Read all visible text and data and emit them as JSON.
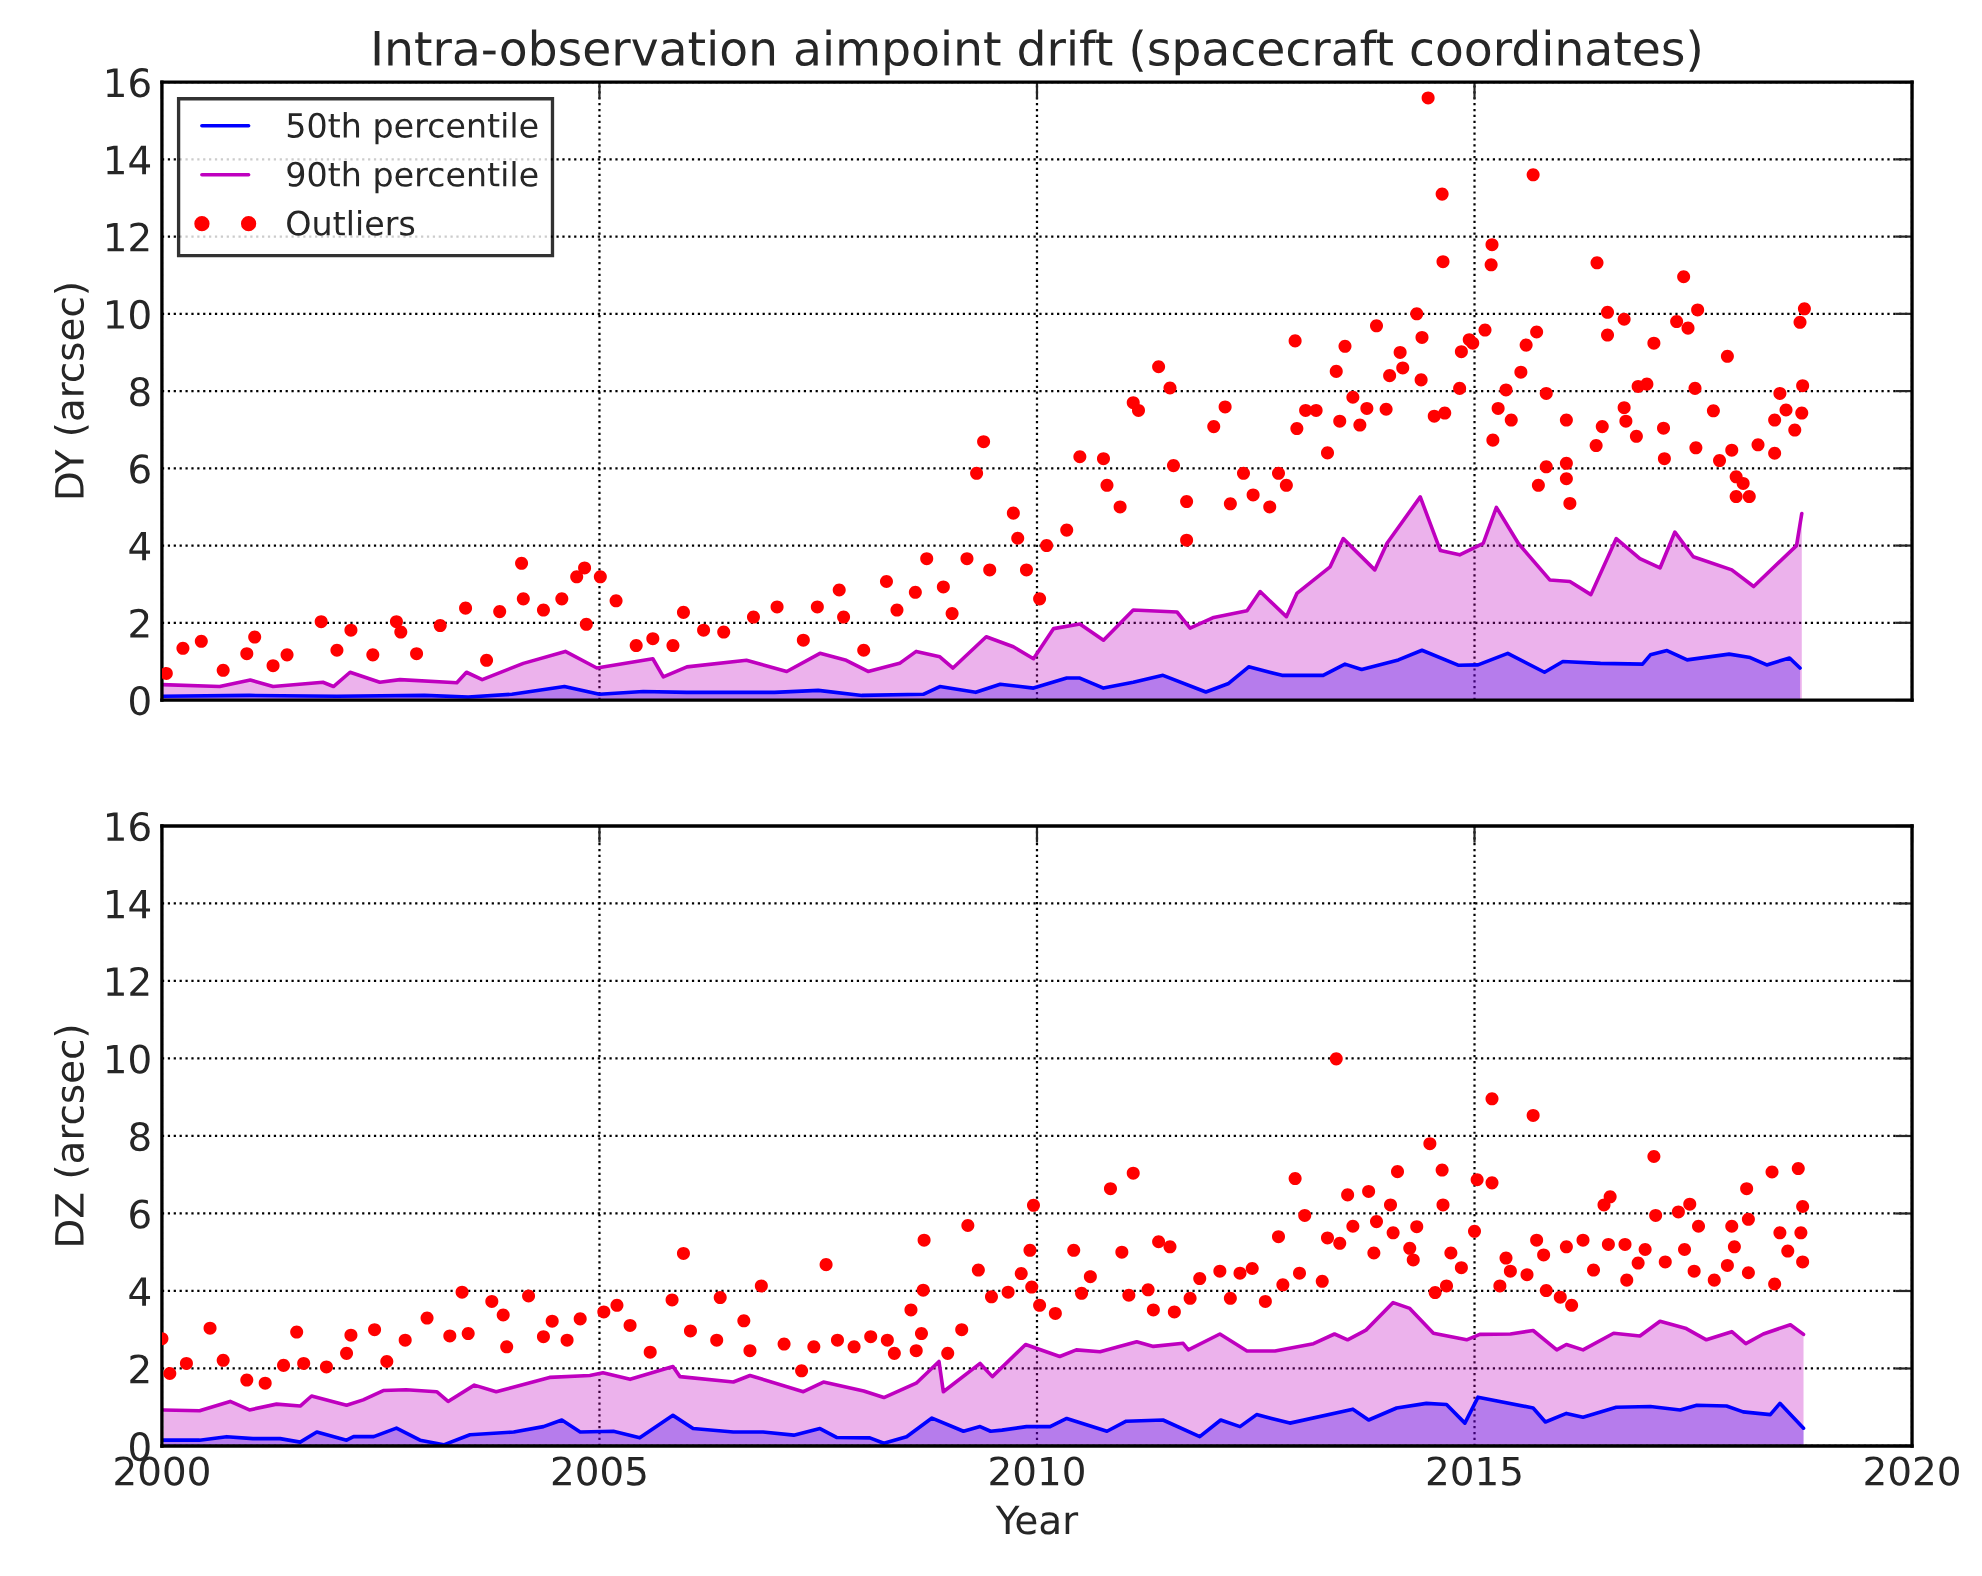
{
  "chart_data": [
    {
      "type": "area",
      "title": "Intra-observation aimpoint drift (spacecraft coordinates)",
      "ylabel": "DY (arcsec)",
      "xlim": [
        2000,
        2020
      ],
      "xticks": [
        2000,
        2005,
        2010,
        2015,
        2020
      ],
      "ylim": [
        0,
        16
      ],
      "yticks": [
        0,
        2,
        4,
        6,
        8,
        10,
        12,
        14,
        16
      ],
      "grid": true,
      "legend": "top left",
      "tick_labels": "y",
      "series": [
        {
          "name": "50th percentile",
          "color": "#0000ff",
          "line_style": "solid",
          "marker": "none",
          "x": [
            2000.0,
            2001.0,
            2002.0,
            2003.0,
            2003.5,
            2004.0,
            2004.6,
            2005.0,
            2005.5,
            2006.0,
            2007.0,
            2007.5,
            2008.0,
            2008.7,
            2008.89,
            2009.3,
            2009.58,
            2009.96,
            2010.34,
            2010.49,
            2010.76,
            2011.1,
            2011.44,
            2011.93,
            2012.19,
            2012.42,
            2012.8,
            2013.27,
            2013.52,
            2013.71,
            2014.13,
            2014.4,
            2014.82,
            2015.04,
            2015.38,
            2015.8,
            2016.01,
            2016.44,
            2016.92,
            2017.01,
            2017.2,
            2017.43,
            2017.91,
            2018.15,
            2018.34,
            2018.6,
            2018.72
          ],
          "values": [
            0.1,
            0.12,
            0.1,
            0.12,
            0.08,
            0.15,
            0.35,
            0.15,
            0.22,
            0.2,
            0.2,
            0.25,
            0.12,
            0.15,
            0.35,
            0.2,
            0.41,
            0.31,
            0.57,
            0.57,
            0.31,
            0.46,
            0.64,
            0.21,
            0.43,
            0.86,
            0.64,
            0.64,
            0.93,
            0.79,
            1.04,
            1.29,
            0.9,
            0.91,
            1.21,
            0.72,
            1.0,
            0.95,
            0.93,
            1.17,
            1.28,
            1.04,
            1.19,
            1.1,
            0.91,
            1.09,
            0.83
          ]
        },
        {
          "name": "90th percentile",
          "color": "#bf00bf",
          "line_style": "solid",
          "marker": "none",
          "x": [
            2000.0,
            2000.66,
            2001.01,
            2001.27,
            2001.84,
            2001.96,
            2002.15,
            2002.49,
            2002.72,
            2003.37,
            2003.48,
            2003.66,
            2004.13,
            2004.61,
            2004.97,
            2005.61,
            2005.73,
            2006.0,
            2006.68,
            2007.14,
            2007.52,
            2007.82,
            2008.07,
            2008.43,
            2008.62,
            2008.89,
            2009.04,
            2009.42,
            2009.73,
            2009.96,
            2010.19,
            2010.49,
            2010.76,
            2011.1,
            2011.6,
            2011.75,
            2012.02,
            2012.4,
            2012.55,
            2012.85,
            2012.97,
            2013.35,
            2013.5,
            2013.86,
            2014.0,
            2014.38,
            2014.61,
            2014.83,
            2015.1,
            2015.25,
            2015.5,
            2015.86,
            2016.09,
            2016.33,
            2016.62,
            2016.89,
            2017.12,
            2017.29,
            2017.5,
            2017.94,
            2018.19,
            2018.68,
            2018.74
          ],
          "values": [
            0.4,
            0.35,
            0.52,
            0.35,
            0.46,
            0.35,
            0.72,
            0.46,
            0.53,
            0.45,
            0.72,
            0.53,
            0.95,
            1.26,
            0.83,
            1.07,
            0.6,
            0.86,
            1.03,
            0.74,
            1.21,
            1.03,
            0.74,
            0.95,
            1.26,
            1.12,
            0.83,
            1.64,
            1.38,
            1.07,
            1.85,
            1.97,
            1.55,
            2.33,
            2.28,
            1.86,
            2.14,
            2.31,
            2.81,
            2.16,
            2.76,
            3.45,
            4.18,
            3.37,
            4.06,
            5.26,
            3.87,
            3.76,
            4.06,
            4.99,
            4.06,
            3.11,
            3.07,
            2.73,
            4.18,
            3.66,
            3.42,
            4.35,
            3.71,
            3.37,
            2.94,
            4.0,
            4.83
          ]
        },
        {
          "name": "Outliers",
          "type": "scatter",
          "color": "#ff0000",
          "marker": "circle",
          "x": [
            2000.05,
            2000.24,
            2000.45,
            2000.7,
            2000.97,
            2001.06,
            2001.27,
            2001.43,
            2001.82,
            2002.0,
            2002.16,
            2002.41,
            2002.68,
            2002.73,
            2002.91,
            2003.18,
            2003.47,
            2003.71,
            2003.86,
            2004.11,
            2004.13,
            2004.36,
            2004.57,
            2004.74,
            2004.83,
            2005.01,
            2004.85,
            2005.19,
            2005.42,
            2005.61,
            2005.84,
            2005.96,
            2006.19,
            2006.42,
            2006.76,
            2007.03,
            2007.33,
            2007.49,
            2007.74,
            2007.79,
            2008.02,
            2008.28,
            2008.4,
            2008.61,
            2008.74,
            2008.93,
            2009.03,
            2009.2,
            2009.31,
            2009.39,
            2009.46,
            2009.73,
            2009.78,
            2009.88,
            2010.03,
            2010.11,
            2010.34,
            2010.49,
            2010.76,
            2010.8,
            2010.95,
            2011.1,
            2011.16,
            2011.39,
            2011.52,
            2011.56,
            2011.71,
            2011.71,
            2012.02,
            2012.15,
            2012.21,
            2012.36,
            2012.47,
            2012.66,
            2012.76,
            2012.85,
            2012.95,
            2012.97,
            2013.07,
            2013.19,
            2013.32,
            2013.42,
            2013.46,
            2013.52,
            2013.61,
            2013.69,
            2013.77,
            2013.88,
            2013.99,
            2014.03,
            2014.15,
            2014.18,
            2014.34,
            2014.39,
            2014.4,
            2014.47,
            2014.54,
            2014.63,
            2014.64,
            2014.66,
            2014.83,
            2014.85,
            2014.94,
            2014.98,
            2015.12,
            2015.2,
            2015.19,
            2015.21,
            2015.27,
            2015.36,
            2015.42,
            2015.53,
            2015.59,
            2015.67,
            2015.71,
            2015.82,
            2015.73,
            2015.82,
            2016.05,
            2016.05,
            2016.05,
            2016.09,
            2016.39,
            2016.4,
            2016.46,
            2016.52,
            2016.52,
            2016.71,
            2016.71,
            2016.73,
            2016.85,
            2016.87,
            2016.97,
            2017.05,
            2017.16,
            2017.17,
            2017.31,
            2017.39,
            2017.44,
            2017.52,
            2017.55,
            2017.53,
            2017.73,
            2017.8,
            2017.89,
            2017.94,
            2017.99,
            2018.07,
            2017.99,
            2018.14,
            2018.24,
            2018.43,
            2018.43,
            2018.49,
            2018.56,
            2018.66,
            2018.72,
            2018.77,
            2018.75,
            2018.74
          ],
          "values": [
            0.69,
            1.34,
            1.52,
            0.77,
            1.2,
            1.63,
            0.89,
            1.17,
            2.03,
            1.29,
            1.81,
            1.17,
            2.03,
            1.76,
            1.2,
            1.93,
            2.38,
            1.03,
            2.29,
            3.54,
            2.62,
            2.33,
            2.62,
            3.19,
            3.42,
            3.19,
            1.96,
            2.57,
            1.41,
            1.59,
            1.41,
            2.27,
            1.81,
            1.76,
            2.15,
            2.41,
            1.55,
            2.41,
            2.85,
            2.15,
            1.29,
            3.07,
            2.33,
            2.79,
            3.66,
            2.93,
            2.24,
            3.66,
            5.87,
            6.69,
            3.37,
            4.84,
            4.19,
            3.37,
            2.62,
            4.0,
            4.4,
            6.3,
            6.25,
            5.56,
            5.0,
            7.7,
            7.5,
            8.63,
            8.08,
            6.07,
            5.14,
            4.14,
            7.08,
            7.59,
            5.08,
            5.87,
            5.31,
            5.0,
            5.87,
            5.56,
            9.3,
            7.03,
            7.5,
            7.5,
            6.4,
            8.51,
            7.22,
            9.16,
            7.84,
            7.12,
            7.55,
            9.69,
            7.53,
            8.4,
            9.0,
            8.6,
            10.0,
            8.29,
            9.39,
            15.59,
            7.35,
            13.1,
            11.35,
            7.43,
            8.07,
            9.02,
            9.33,
            9.24,
            9.58,
            11.79,
            11.27,
            6.73,
            7.55,
            8.03,
            7.25,
            8.49,
            9.19,
            13.6,
            9.53,
            7.94,
            5.56,
            6.04,
            7.25,
            6.13,
            5.73,
            5.09,
            6.59,
            11.32,
            7.08,
            10.04,
            9.45,
            9.86,
            7.57,
            7.22,
            6.83,
            8.12,
            8.18,
            9.24,
            7.04,
            6.25,
            9.8,
            10.96,
            9.63,
            8.07,
            10.1,
            6.53,
            7.49,
            6.2,
            8.9,
            6.47,
            5.78,
            5.61,
            5.27,
            5.27,
            6.61,
            7.25,
            6.39,
            7.94,
            7.51,
            6.99,
            9.78,
            10.13,
            8.14,
            7.43
          ]
        }
      ]
    },
    {
      "type": "area",
      "xlabel": "Year",
      "ylabel": "DZ (arcsec)",
      "xlim": [
        2000,
        2020
      ],
      "xticks": [
        2000,
        2005,
        2010,
        2015,
        2020
      ],
      "ylim": [
        0,
        16
      ],
      "yticks": [
        0,
        2,
        4,
        6,
        8,
        10,
        12,
        14,
        16
      ],
      "grid": true,
      "series": [
        {
          "color": "#0000ff",
          "line_style": "solid",
          "marker": "none",
          "x": [
            2000.02,
            2000.43,
            2000.74,
            2001.04,
            2001.35,
            2001.58,
            2001.77,
            2002.11,
            2002.19,
            2002.42,
            2002.68,
            2002.95,
            2003.22,
            2003.52,
            2004.02,
            2004.36,
            2004.57,
            2004.78,
            2005.16,
            2005.46,
            2005.84,
            2006.07,
            2006.53,
            2006.87,
            2007.22,
            2007.52,
            2007.71,
            2008.09,
            2008.25,
            2008.51,
            2008.8,
            2009.16,
            2009.35,
            2009.47,
            2009.6,
            2009.88,
            2010.15,
            2010.34,
            2010.8,
            2011.02,
            2011.44,
            2011.86,
            2012.1,
            2012.32,
            2012.51,
            2012.89,
            2013.61,
            2013.79,
            2014.11,
            2014.45,
            2014.68,
            2014.89,
            2015.04,
            2015.67,
            2015.81,
            2016.05,
            2016.24,
            2016.62,
            2017.01,
            2017.35,
            2017.54,
            2017.88,
            2018.07,
            2018.38,
            2018.49,
            2018.76
          ],
          "values": [
            0.15,
            0.15,
            0.24,
            0.19,
            0.19,
            0.1,
            0.36,
            0.15,
            0.24,
            0.24,
            0.46,
            0.15,
            0.03,
            0.29,
            0.36,
            0.5,
            0.67,
            0.36,
            0.38,
            0.21,
            0.79,
            0.45,
            0.36,
            0.36,
            0.28,
            0.45,
            0.22,
            0.21,
            0.07,
            0.24,
            0.72,
            0.38,
            0.5,
            0.38,
            0.41,
            0.5,
            0.5,
            0.71,
            0.38,
            0.64,
            0.67,
            0.24,
            0.67,
            0.5,
            0.81,
            0.59,
            0.95,
            0.67,
            0.98,
            1.1,
            1.07,
            0.59,
            1.26,
            0.98,
            0.62,
            0.84,
            0.74,
            1.0,
            1.02,
            0.93,
            1.05,
            1.03,
            0.88,
            0.81,
            1.1,
            0.46
          ]
        },
        {
          "color": "#bf00bf",
          "line_style": "solid",
          "marker": "none",
          "x": [
            2000.02,
            2000.43,
            2000.78,
            2001.0,
            2001.31,
            2001.58,
            2001.71,
            2002.11,
            2002.3,
            2002.53,
            2002.79,
            2003.14,
            2003.27,
            2003.57,
            2003.82,
            2004.43,
            2004.89,
            2005.04,
            2005.35,
            2005.84,
            2005.92,
            2006.53,
            2006.72,
            2007.33,
            2007.56,
            2008.02,
            2008.25,
            2008.62,
            2008.88,
            2008.93,
            2009.35,
            2009.49,
            2009.87,
            2010.26,
            2010.45,
            2010.72,
            2011.14,
            2011.33,
            2011.67,
            2011.73,
            2012.09,
            2012.4,
            2012.72,
            2013.16,
            2013.4,
            2013.55,
            2013.76,
            2014.07,
            2014.26,
            2014.53,
            2014.91,
            2015.06,
            2015.41,
            2015.67,
            2015.94,
            2016.05,
            2016.24,
            2016.59,
            2016.89,
            2017.12,
            2017.42,
            2017.65,
            2017.94,
            2018.1,
            2018.3,
            2018.61,
            2018.76
          ],
          "values": [
            0.93,
            0.91,
            1.15,
            0.93,
            1.08,
            1.03,
            1.29,
            1.05,
            1.19,
            1.43,
            1.45,
            1.4,
            1.15,
            1.57,
            1.4,
            1.77,
            1.82,
            1.89,
            1.72,
            2.05,
            1.79,
            1.65,
            1.82,
            1.4,
            1.65,
            1.42,
            1.25,
            1.62,
            2.18,
            1.4,
            2.13,
            1.79,
            2.62,
            2.31,
            2.48,
            2.43,
            2.69,
            2.57,
            2.65,
            2.48,
            2.89,
            2.45,
            2.45,
            2.64,
            2.89,
            2.74,
            2.99,
            3.7,
            3.55,
            2.91,
            2.74,
            2.88,
            2.89,
            2.98,
            2.48,
            2.62,
            2.48,
            2.91,
            2.84,
            3.22,
            3.03,
            2.74,
            2.95,
            2.64,
            2.89,
            3.13,
            2.88
          ]
        },
        {
          "type": "scatter",
          "color": "#ff0000",
          "marker": "circle",
          "x": [
            2000.0,
            2000.09,
            2000.28,
            2000.55,
            2000.7,
            2000.97,
            2001.18,
            2001.39,
            2001.54,
            2001.62,
            2001.88,
            2002.11,
            2002.16,
            2002.43,
            2002.57,
            2002.78,
            2003.03,
            2003.29,
            2003.43,
            2003.5,
            2003.77,
            2003.9,
            2003.94,
            2004.19,
            2004.36,
            2004.46,
            2004.63,
            2004.78,
            2005.05,
            2005.2,
            2005.35,
            2005.58,
            2005.83,
            2005.96,
            2006.04,
            2006.34,
            2006.38,
            2006.65,
            2006.72,
            2006.85,
            2007.11,
            2007.31,
            2007.45,
            2007.59,
            2007.72,
            2007.91,
            2008.1,
            2008.29,
            2008.37,
            2008.56,
            2008.62,
            2008.68,
            2008.7,
            2008.71,
            2008.98,
            2009.14,
            2009.21,
            2009.33,
            2009.48,
            2009.67,
            2009.82,
            2009.94,
            2009.96,
            2009.92,
            2010.03,
            2010.21,
            2010.42,
            2010.51,
            2010.61,
            2010.84,
            2010.97,
            2011.1,
            2011.05,
            2011.27,
            2011.33,
            2011.39,
            2011.52,
            2011.57,
            2011.75,
            2011.86,
            2012.09,
            2012.21,
            2012.32,
            2012.46,
            2012.61,
            2012.76,
            2012.81,
            2012.95,
            2013.0,
            2013.06,
            2013.26,
            2013.32,
            2013.42,
            2013.46,
            2013.55,
            2013.61,
            2013.79,
            2013.85,
            2013.88,
            2014.04,
            2014.07,
            2014.12,
            2014.26,
            2014.3,
            2014.34,
            2014.49,
            2014.55,
            2014.63,
            2014.64,
            2014.68,
            2014.73,
            2014.85,
            2015.0,
            2015.03,
            2015.2,
            2015.2,
            2015.29,
            2015.36,
            2015.41,
            2015.6,
            2015.67,
            2015.71,
            2015.79,
            2015.82,
            2015.98,
            2016.05,
            2016.11,
            2016.24,
            2016.36,
            2016.48,
            2016.55,
            2016.53,
            2016.72,
            2016.74,
            2016.87,
            2016.95,
            2017.05,
            2017.07,
            2017.18,
            2017.33,
            2017.4,
            2017.46,
            2017.56,
            2017.51,
            2017.74,
            2017.89,
            2017.94,
            2017.97,
            2018.11,
            2018.13,
            2018.13,
            2018.4,
            2018.43,
            2018.49,
            2018.58,
            2018.7,
            2018.73,
            2018.75,
            2018.75
          ],
          "values": [
            2.77,
            1.87,
            2.13,
            3.04,
            2.21,
            1.7,
            1.62,
            2.08,
            2.94,
            2.13,
            2.04,
            2.39,
            2.86,
            3.0,
            2.18,
            2.73,
            3.3,
            2.84,
            3.97,
            2.9,
            3.73,
            3.38,
            2.56,
            3.87,
            2.82,
            3.22,
            2.73,
            3.28,
            3.46,
            3.63,
            3.11,
            2.42,
            3.77,
            4.97,
            2.97,
            2.73,
            3.83,
            3.23,
            2.46,
            4.13,
            2.63,
            1.94,
            2.56,
            4.68,
            2.73,
            2.56,
            2.82,
            2.73,
            2.39,
            3.51,
            2.46,
            2.9,
            4.02,
            5.31,
            2.39,
            3.0,
            5.69,
            4.54,
            3.85,
            3.97,
            4.45,
            4.1,
            6.21,
            5.05,
            3.63,
            3.42,
            5.05,
            3.94,
            4.37,
            6.64,
            5.0,
            7.04,
            3.89,
            4.03,
            3.51,
            5.27,
            5.14,
            3.46,
            3.81,
            4.32,
            4.51,
            3.81,
            4.46,
            4.58,
            3.73,
            5.4,
            4.16,
            6.9,
            4.46,
            5.95,
            4.25,
            5.37,
            9.99,
            5.23,
            6.48,
            5.67,
            6.57,
            4.98,
            5.79,
            6.22,
            5.5,
            7.08,
            5.1,
            4.8,
            5.66,
            7.8,
            3.96,
            7.12,
            6.22,
            4.13,
            4.98,
            4.6,
            5.54,
            6.87,
            6.79,
            8.96,
            4.13,
            4.85,
            4.51,
            4.42,
            8.53,
            5.31,
            4.93,
            4.01,
            3.84,
            5.14,
            3.63,
            5.31,
            4.54,
            6.22,
            6.43,
            5.2,
            5.2,
            4.28,
            4.72,
            5.07,
            7.47,
            5.95,
            4.75,
            6.04,
            5.07,
            6.24,
            5.67,
            4.51,
            4.28,
            4.66,
            5.67,
            5.14,
            6.64,
            4.47,
            5.85,
            7.07,
            4.18,
            5.5,
            5.03,
            7.16,
            5.5,
            6.18,
            4.75
          ]
        }
      ]
    }
  ]
}
